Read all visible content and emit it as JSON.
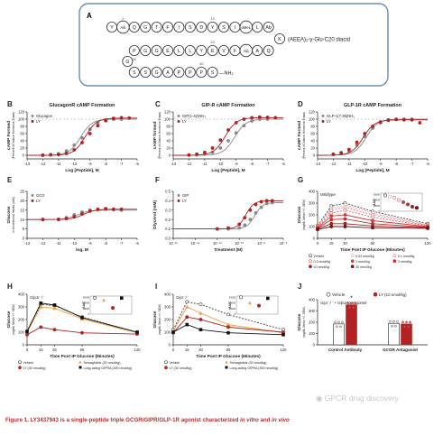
{
  "panel_a": {
    "letter": "A",
    "residues_row1": [
      "Y",
      "Aib",
      "Q",
      "G",
      "T",
      "F",
      "I",
      "S",
      "D",
      "Y",
      "S",
      "I",
      "αMeL",
      "L",
      "Ab"
    ],
    "residues_row2": [
      "K",
      "Q",
      "A",
      "Aib",
      "F",
      "V",
      "E",
      "Y",
      "L",
      "L",
      "E",
      "G",
      "G",
      "P"
    ],
    "residues_row3": [
      "S",
      "S",
      "G",
      "A",
      "P",
      "P",
      "P",
      "S"
    ],
    "lipid": "(AEEA)₂-γ-Glu-C20 diacid",
    "c_term": "—NH₂",
    "numbers": [
      "2",
      "10",
      "20",
      "30",
      "40"
    ]
  },
  "chart_data": [
    {
      "panel": "B",
      "type": "line",
      "title": "GlucagonR cAMP Formation",
      "ylabel": "cAMP Formed",
      "ylabel2": "(Percent of Native Hormone Emax)",
      "xlabel": "Log [Peptide], M",
      "xlim": [
        -13,
        -6
      ],
      "ylim": [
        -10,
        120
      ],
      "xticks": [
        "-13",
        "-12",
        "-11",
        "-10",
        "-9",
        "-8",
        "-7",
        "-6"
      ],
      "yticks": [
        "0",
        "20",
        "40",
        "60",
        "80",
        "100",
        "120"
      ],
      "legend": [
        "Glucagon",
        "LY"
      ],
      "legend_pos": "top-left",
      "series": [
        {
          "name": "Glucagon",
          "color": "#8a8a8a",
          "ec50": -9.6,
          "top": 100,
          "x": [
            -12,
            -11.5,
            -11,
            -10.5,
            -10,
            -9.5,
            -9,
            -8.5,
            -8,
            -7.5,
            -7
          ],
          "values": [
            1,
            2,
            4,
            12,
            28,
            48,
            72,
            90,
            98,
            100,
            100
          ]
        },
        {
          "name": "LY",
          "color": "#b22222",
          "ec50": -9.3,
          "top": 103,
          "x": [
            -12,
            -11.5,
            -11,
            -10.5,
            -10,
            -9.5,
            -9,
            -8.5,
            -8,
            -7.5,
            -7,
            -6.5
          ],
          "values": [
            0,
            1,
            2,
            5,
            15,
            35,
            60,
            82,
            96,
            102,
            104,
            103
          ]
        }
      ]
    },
    {
      "panel": "C",
      "type": "line",
      "title": "GIP-R cAMP Formation",
      "ylabel": "cAMP formed",
      "ylabel2": "(Percent of Native Hormone Emax)",
      "xlabel": "Log [Peptide], M",
      "xlim": [
        -13,
        -6
      ],
      "ylim": [
        -10,
        120
      ],
      "xticks": [
        "-13",
        "-12",
        "-11",
        "-10",
        "-9",
        "-8",
        "-7",
        "-6"
      ],
      "yticks": [
        "0",
        "20",
        "40",
        "60",
        "80",
        "100",
        "120"
      ],
      "legend": [
        "GIP(1-42)NH₂",
        "LY"
      ],
      "legend_pos": "top-left",
      "series": [
        {
          "name": "GIP(1-42)NH₂",
          "color": "#8a8a8a",
          "ec50": -9.1,
          "top": 100,
          "x": [
            -12,
            -11.5,
            -11,
            -10.5,
            -10,
            -9.5,
            -9,
            -8.5,
            -8,
            -7.5,
            -7
          ],
          "values": [
            0,
            1,
            3,
            8,
            20,
            40,
            62,
            82,
            95,
            100,
            100
          ]
        },
        {
          "name": "LY",
          "color": "#b22222",
          "ec50": -9.7,
          "top": 104,
          "x": [
            -12,
            -11.5,
            -11,
            -10.5,
            -10,
            -9.5,
            -9,
            -8.5,
            -8,
            -7.5,
            -7,
            -6.5
          ],
          "values": [
            1,
            3,
            8,
            20,
            42,
            70,
            90,
            100,
            104,
            106,
            105,
            104
          ]
        }
      ]
    },
    {
      "panel": "D",
      "type": "line",
      "title": "GLP-1R cAMP Formation",
      "ylabel": "cAMP Formed",
      "ylabel2": "(Percent of Native Hormone Emax)",
      "xlabel": "Log [Peptide], M",
      "xlim": [
        -13,
        -6
      ],
      "ylim": [
        -10,
        120
      ],
      "xticks": [
        "-13",
        "-12",
        "-11",
        "-10",
        "-9",
        "-8",
        "-7",
        "-6"
      ],
      "yticks": [
        "0",
        "20",
        "40",
        "60",
        "80",
        "100",
        "120"
      ],
      "legend": [
        "GLP-1(7-36)NH₂",
        "LY"
      ],
      "legend_pos": "top-left",
      "series": [
        {
          "name": "GLP-1(7-36)NH₂",
          "color": "#8a8a8a",
          "ec50": -9.9,
          "top": 100,
          "x": [
            -12,
            -11.5,
            -11,
            -10.5,
            -10,
            -9.5,
            -9,
            -8.5,
            -8,
            -7.5,
            -7
          ],
          "values": [
            2,
            5,
            12,
            28,
            52,
            75,
            90,
            98,
            100,
            100,
            100
          ]
        },
        {
          "name": "LY",
          "color": "#b22222",
          "ec50": -10.1,
          "top": 98,
          "x": [
            -12,
            -11.5,
            -11,
            -10.5,
            -10,
            -9.5,
            -9,
            -8.5,
            -8,
            -7.5,
            -7,
            -6.5
          ],
          "values": [
            3,
            7,
            16,
            36,
            60,
            80,
            92,
            97,
            99,
            98,
            98,
            90
          ]
        }
      ]
    },
    {
      "panel": "E",
      "type": "line",
      "ylabel": "Glucose",
      "ylabel2": "in conditioned media (mM)",
      "xlabel": "log, M",
      "xlim": [
        -13,
        -6
      ],
      "ylim": [
        0,
        25
      ],
      "xticks": [
        "-13",
        "-12",
        "-11",
        "-10",
        "-9",
        "-8",
        "-7",
        "-6"
      ],
      "yticks": [
        "0",
        "5",
        "10",
        "15",
        "20",
        "25"
      ],
      "legend": [
        "GCG",
        "LY"
      ],
      "legend_pos": "top-left",
      "series": [
        {
          "name": "GCG",
          "color": "#8a8a8a",
          "ec50": -9.8,
          "bottom": 10,
          "top": 15,
          "x": [
            -12,
            -11,
            -10.5,
            -10,
            -9.5,
            -9,
            -8.5,
            -8,
            -7.5,
            -7
          ],
          "values": [
            10,
            10.2,
            11,
            12.5,
            14,
            15,
            15.2,
            15.5,
            15.2,
            15
          ]
        },
        {
          "name": "LY",
          "color": "#b22222",
          "ec50": -9.4,
          "bottom": 10,
          "top": 15.5,
          "x": [
            -12,
            -11,
            -10.5,
            -10,
            -9.5,
            -9,
            -8.5,
            -8,
            -7.5,
            -7
          ],
          "values": [
            10,
            10,
            10.5,
            11.5,
            13,
            14.5,
            15.5,
            15.8,
            15.5,
            15.5
          ]
        }
      ]
    },
    {
      "panel": "F",
      "type": "line",
      "ylabel": "Glycerol (mM)",
      "ylabel2": "",
      "xlabel": "Treatment (M)",
      "xlim": [
        -16,
        -6
      ],
      "ylim": [
        0.0,
        0.5
      ],
      "xticks": [
        "10⁻¹⁶",
        "10⁻¹⁴",
        "10⁻¹²",
        "10⁻¹⁰",
        "10⁻⁸",
        "10⁻⁶"
      ],
      "yticks": [
        "0.0",
        "0.1",
        "0.2",
        "0.3",
        "0.4",
        "0.5"
      ],
      "legend": [
        "GIP",
        "LY"
      ],
      "legend_pos": "top-left",
      "series": [
        {
          "name": "GIP",
          "color": "#8a8a8a",
          "ec50": -8.6,
          "bottom": 0.1,
          "top": 0.38,
          "x": [
            -12,
            -11,
            -10,
            -9.5,
            -9,
            -8.5,
            -8,
            -7.5,
            -7
          ],
          "values": [
            0.1,
            0.1,
            0.11,
            0.14,
            0.2,
            0.27,
            0.33,
            0.37,
            0.38
          ]
        },
        {
          "name": "LY",
          "color": "#b22222",
          "ec50": -9.4,
          "bottom": 0.1,
          "top": 0.4,
          "x": [
            -12,
            -11,
            -10,
            -9.5,
            -9,
            -8.5,
            -8,
            -7.5,
            -7
          ],
          "values": [
            0.1,
            0.11,
            0.15,
            0.22,
            0.3,
            0.36,
            0.39,
            0.4,
            0.4
          ]
        }
      ]
    },
    {
      "panel": "G",
      "type": "line",
      "subtitle": "Wildtype",
      "ylabel": "Glucose",
      "ylabel2": "(mg/dL Mean +/- SEM)",
      "xlabel": "Time Post IP Glucose (Minutes)",
      "xlim": [
        0,
        120
      ],
      "ylim": [
        0,
        400
      ],
      "xticks": [
        "0",
        "15",
        "30",
        "60",
        "120"
      ],
      "xticks_v": [
        0,
        15,
        30,
        60,
        120
      ],
      "yticks": [
        "0",
        "100",
        "200",
        "300",
        "400"
      ],
      "legend": [
        "Vehicle",
        "0.03 nmol/kg",
        "0.1 nmol/kg",
        "0.3 nmol/kg",
        "1 nmol/kg",
        "3 nmol/kg",
        "10 nmol/kg",
        "30 nmol/kg"
      ],
      "legend_pos": "bottom",
      "inset": {
        "ylabel": "AUC",
        "yticks": [
          "0",
          "10000",
          "20000",
          "30000"
        ],
        "values": [
          28000,
          26000,
          24000,
          20000,
          16000,
          12000,
          8000,
          6000
        ]
      },
      "series": [
        {
          "name": "Vehicle",
          "color": "#444444",
          "open": true,
          "x": [
            0,
            15,
            30,
            60,
            120
          ],
          "values": [
            110,
            275,
            300,
            230,
            125
          ]
        },
        {
          "name": "0.03 nmol/kg",
          "color": "#e7a0a0",
          "open": true,
          "x": [
            0,
            15,
            30,
            60,
            120
          ],
          "values": [
            105,
            255,
            285,
            215,
            115
          ]
        },
        {
          "name": "0.1 nmol/kg",
          "color": "#e08080",
          "open": true,
          "x": [
            0,
            15,
            30,
            60,
            120
          ],
          "values": [
            100,
            240,
            265,
            200,
            110
          ]
        },
        {
          "name": "0.3 nmol/kg",
          "color": "#e06060",
          "open": true,
          "x": [
            0,
            15,
            30,
            60,
            120
          ],
          "values": [
            95,
            215,
            240,
            180,
            105
          ]
        },
        {
          "name": "1 nmol/kg",
          "color": "#d04040",
          "open": false,
          "x": [
            0,
            15,
            30,
            60,
            120
          ],
          "values": [
            90,
            190,
            200,
            150,
            100
          ]
        },
        {
          "name": "3 nmol/kg",
          "color": "#c03030",
          "open": false,
          "x": [
            0,
            15,
            30,
            60,
            120
          ],
          "values": [
            85,
            160,
            165,
            125,
            95
          ]
        },
        {
          "name": "10 nmol/kg",
          "color": "#a02020",
          "open": false,
          "x": [
            0,
            15,
            30,
            60,
            120
          ],
          "values": [
            80,
            125,
            125,
            105,
            90
          ]
        },
        {
          "name": "30 nmol/kg",
          "color": "#701010",
          "open": false,
          "x": [
            0,
            15,
            30,
            60,
            120
          ],
          "values": [
            75,
            100,
            100,
            90,
            85
          ]
        }
      ]
    },
    {
      "panel": "H",
      "type": "line",
      "subtitle": "Glp1r⁻/⁻",
      "ylabel": "Glucose",
      "ylabel2": "(mg/dL Mean +/- SEM)",
      "xlabel": "Time Post IP Glucose (Minutes)",
      "xlim": [
        0,
        120
      ],
      "ylim": [
        0,
        400
      ],
      "xticks": [
        "0",
        "15",
        "30",
        "60",
        "120"
      ],
      "xticks_v": [
        0,
        15,
        30,
        60,
        120
      ],
      "yticks": [
        "0",
        "100",
        "200",
        "300",
        "400"
      ],
      "legend": [
        "Vehicle",
        "Semaglutide (30 nmol/kg)",
        "LY (30 nmol/kg)",
        "Long-acting GIPRA (300 nmol/kg)"
      ],
      "legend_pos": "bottom",
      "inset": {
        "ylabel": "AUC",
        "yticks": [
          "0",
          "10000",
          "20000",
          "30000"
        ],
        "values": [
          29000,
          25000,
          11000,
          28500
        ]
      },
      "series": [
        {
          "name": "Vehicle",
          "color": "#444444",
          "open": true,
          "x": [
            0,
            15,
            30,
            60,
            120
          ],
          "values": [
            110,
            320,
            310,
            220,
            100
          ]
        },
        {
          "name": "Semaglutide (30 nmol/kg)",
          "color": "#f0a040",
          "open": false,
          "shape": "tri",
          "x": [
            0,
            15,
            30,
            60,
            120
          ],
          "values": [
            100,
            300,
            290,
            205,
            95
          ]
        },
        {
          "name": "LY (30 nmol/kg)",
          "color": "#b22222",
          "open": false,
          "x": [
            0,
            15,
            30,
            60,
            120
          ],
          "values": [
            80,
            140,
            120,
            95,
            85
          ]
        },
        {
          "name": "Long-acting GIPRA (300 nmol/kg)",
          "color": "#111111",
          "open": false,
          "shape": "sq",
          "x": [
            0,
            15,
            30,
            60,
            120
          ],
          "values": [
            105,
            330,
            315,
            215,
            100
          ]
        }
      ]
    },
    {
      "panel": "I",
      "type": "line",
      "subtitle": "Gipr⁻/⁻",
      "ylabel": "Glucose",
      "ylabel2": "(mg/dL Mean +/- SEM)",
      "xlabel": "Time Post IP Glucose (Minutes)",
      "xlim": [
        0,
        120
      ],
      "ylim": [
        0,
        400
      ],
      "xticks": [
        "0",
        "15",
        "30",
        "60",
        "120"
      ],
      "xticks_v": [
        0,
        15,
        30,
        60,
        120
      ],
      "yticks": [
        "0",
        "100",
        "200",
        "300",
        "400"
      ],
      "legend": [
        "Vehicle",
        "Semaglutide (30 nmol/kg)",
        "LY (30 nmol/kg)",
        "Long-acting GIPRA (300 nmol/kg)"
      ],
      "legend_pos": "bottom",
      "inset": {
        "ylabel": "AUC",
        "yticks": [
          "0",
          "10000",
          "20000",
          "30000"
        ],
        "values": [
          30000,
          20000,
          15000,
          28000
        ]
      },
      "series": [
        {
          "name": "Vehicle",
          "color": "#444444",
          "open": true,
          "x": [
            0,
            15,
            30,
            60,
            120
          ],
          "values": [
            120,
            340,
            320,
            240,
            120
          ]
        },
        {
          "name": "Semaglutide (30 nmol/kg)",
          "color": "#f0a040",
          "open": false,
          "shape": "tri",
          "x": [
            0,
            15,
            30,
            60,
            120
          ],
          "values": [
            110,
            300,
            250,
            160,
            95
          ]
        },
        {
          "name": "LY (30 nmol/kg)",
          "color": "#b22222",
          "open": false,
          "x": [
            0,
            15,
            30,
            60,
            120
          ],
          "values": [
            95,
            220,
            200,
            140,
            100
          ]
        },
        {
          "name": "Long-acting GIPRA (300 nmol/kg)",
          "color": "#111111",
          "open": false,
          "shape": "sq",
          "x": [
            0,
            15,
            30,
            60,
            120
          ],
          "values": [
            100,
            160,
            120,
            95,
            80
          ]
        }
      ]
    },
    {
      "panel": "J",
      "type": "bar",
      "subtitle": "Gipr⁻/⁻ + Glp1r antagonist",
      "ylabel": "Glucose",
      "ylabel2": "(mg/dL Mean +/- SEM)",
      "ylim": [
        0,
        400
      ],
      "yticks": [
        "0",
        "100",
        "200",
        "300",
        "400"
      ],
      "categories": [
        "Control Antibody",
        "GCGR Antagonist"
      ],
      "legend": [
        "Vehicle",
        "LY (10 nmol/kg)"
      ],
      "legend_pos": "top",
      "series": [
        {
          "name": "Vehicle",
          "color": "#ffffff",
          "stroke": "#222222",
          "values": [
            185,
            190
          ]
        },
        {
          "name": "LY (10 nmol/kg)",
          "color": "#b22222",
          "stroke": "#b22222",
          "values": [
            355,
            185
          ]
        }
      ],
      "significance": "*"
    }
  ],
  "caption": {
    "bold": "Figure 1.  LY3437943 is a single-peptide triple GCGR/GIPR/GLP-1R agonist characterized ",
    "in_vitro": "in vitro",
    "and": " and ",
    "in_vivo": "in vivo"
  },
  "watermark": "GPCR drug discovery"
}
